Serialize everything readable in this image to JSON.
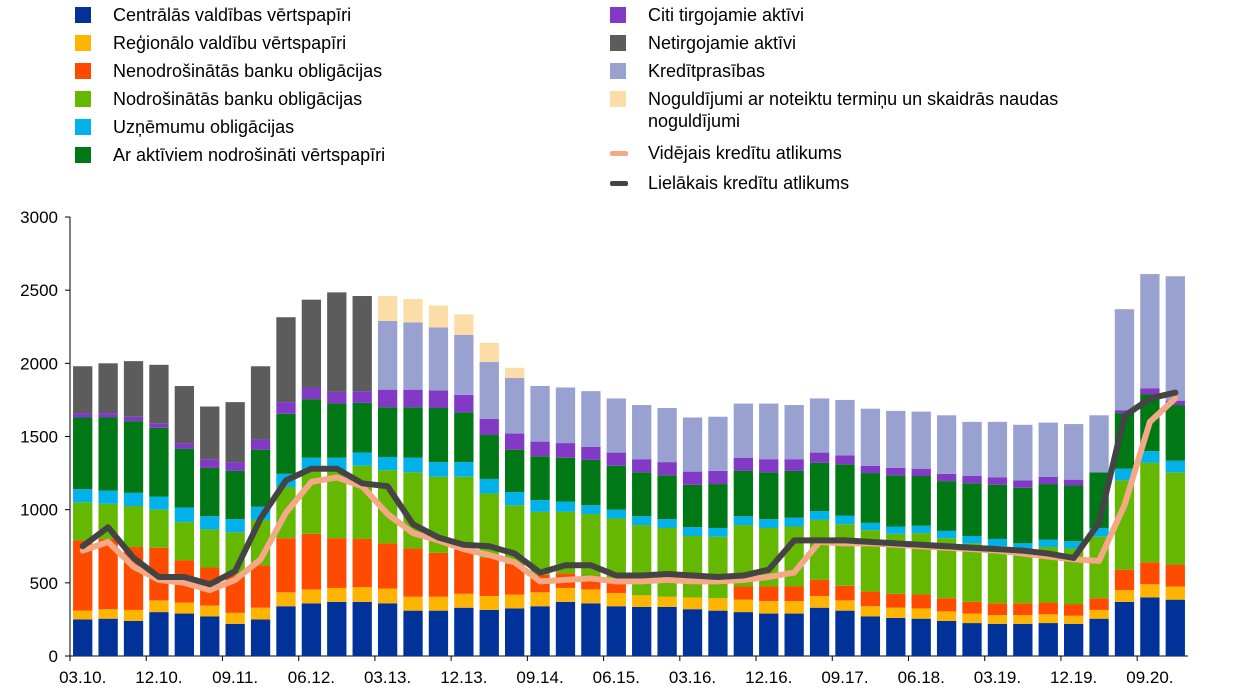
{
  "chart_data": {
    "type": "bar",
    "stacked": true,
    "categories": [
      "03.10.",
      "06.10.",
      "09.10.",
      "12.10.",
      "03.11.",
      "06.11.",
      "09.11.",
      "12.11.",
      "03.12.",
      "06.12.",
      "09.12.",
      "12.12.",
      "03.13.",
      "06.13.",
      "09.13.",
      "12.13.",
      "03.14.",
      "06.14.",
      "09.14.",
      "12.14.",
      "03.15.",
      "06.15.",
      "09.15.",
      "12.15.",
      "03.16.",
      "06.16.",
      "09.16.",
      "12.16.",
      "03.17.",
      "06.17.",
      "09.17.",
      "12.17.",
      "03.18.",
      "06.18.",
      "09.18.",
      "12.18.",
      "03.19.",
      "06.19.",
      "09.19.",
      "12.19.",
      "03.20.",
      "06.20.",
      "09.20.",
      "12.20."
    ],
    "x_tick_labels": [
      "03.10.",
      "12.10.",
      "09.11.",
      "06.12.",
      "03.13.",
      "12.13.",
      "09.14.",
      "06.15.",
      "03.16.",
      "12.16.",
      "09.17.",
      "06.18.",
      "03.19.",
      "12.19.",
      "09.20."
    ],
    "ylim": [
      0,
      3000
    ],
    "yticks": [
      0,
      500,
      1000,
      1500,
      2000,
      2500,
      3000
    ],
    "legend_position": "top",
    "grid": false,
    "series": [
      {
        "name": "Centrālās valdības vērtspapīri",
        "color": "#003299",
        "values": [
          250,
          255,
          240,
          300,
          290,
          270,
          220,
          250,
          340,
          360,
          370,
          370,
          360,
          310,
          310,
          330,
          315,
          325,
          340,
          370,
          360,
          340,
          335,
          335,
          320,
          310,
          300,
          290,
          290,
          330,
          310,
          270,
          260,
          255,
          240,
          225,
          220,
          220,
          225,
          220,
          255,
          370,
          400,
          385
        ]
      },
      {
        "name": "Reģionālo valdību vērtspapīri",
        "color": "#FFB400",
        "values": [
          60,
          65,
          75,
          80,
          75,
          75,
          75,
          80,
          95,
          95,
          95,
          100,
          100,
          95,
          95,
          95,
          95,
          95,
          95,
          95,
          95,
          90,
          80,
          70,
          80,
          85,
          85,
          85,
          85,
          80,
          70,
          70,
          70,
          70,
          65,
          65,
          60,
          60,
          60,
          55,
          60,
          80,
          90,
          90
        ]
      },
      {
        "name": "Nenodrošinātās banku obligācijas",
        "color": "#FF4B00",
        "values": [
          480,
          480,
          430,
          360,
          290,
          260,
          260,
          290,
          370,
          380,
          340,
          330,
          310,
          330,
          300,
          300,
          260,
          210,
          120,
          100,
          95,
          90,
          0,
          0,
          0,
          0,
          90,
          100,
          100,
          110,
          100,
          100,
          95,
          95,
          90,
          80,
          80,
          80,
          80,
          80,
          80,
          140,
          150,
          150
        ]
      },
      {
        "name": "Nodrošinātās banku obligācijas",
        "color": "#65B800",
        "values": [
          260,
          240,
          280,
          260,
          260,
          260,
          290,
          310,
          350,
          430,
          460,
          500,
          500,
          520,
          520,
          500,
          440,
          400,
          430,
          420,
          420,
          420,
          480,
          470,
          420,
          420,
          420,
          400,
          410,
          410,
          420,
          420,
          410,
          420,
          410,
          400,
          390,
          360,
          380,
          380,
          420,
          610,
          680,
          630
        ]
      },
      {
        "name": "Uzņēmumu obligācijas",
        "color": "#00B1EA",
        "values": [
          90,
          90,
          90,
          90,
          100,
          90,
          90,
          90,
          90,
          90,
          90,
          90,
          90,
          100,
          100,
          100,
          100,
          90,
          80,
          70,
          60,
          60,
          60,
          60,
          60,
          60,
          60,
          60,
          60,
          60,
          60,
          50,
          50,
          50,
          50,
          50,
          50,
          50,
          50,
          50,
          60,
          80,
          80,
          80
        ]
      },
      {
        "name": "Ar aktīviem nodrošināti vērtspapīri",
        "color": "#007816",
        "values": [
          490,
          500,
          490,
          470,
          400,
          330,
          330,
          390,
          410,
          400,
          370,
          340,
          340,
          345,
          370,
          340,
          300,
          290,
          300,
          300,
          310,
          300,
          300,
          300,
          290,
          300,
          310,
          320,
          320,
          330,
          350,
          340,
          350,
          340,
          340,
          360,
          370,
          380,
          380,
          380,
          380,
          380,
          390,
          380
        ]
      },
      {
        "name": "Citi tirgojamie aktīvi",
        "color": "#8139C6",
        "values": [
          30,
          30,
          30,
          30,
          40,
          60,
          60,
          70,
          80,
          80,
          80,
          80,
          120,
          120,
          120,
          120,
          110,
          110,
          100,
          100,
          90,
          90,
          90,
          90,
          90,
          90,
          90,
          90,
          80,
          70,
          60,
          50,
          50,
          50,
          50,
          50,
          50,
          50,
          50,
          40,
          0,
          20,
          40,
          30
        ]
      },
      {
        "name": "Netirgojamie aktīvi",
        "color": "#5C5C5C",
        "values": [
          320,
          340,
          380,
          400,
          390,
          360,
          410,
          500,
          580,
          600,
          680,
          650,
          0,
          0,
          0,
          0,
          0,
          0,
          0,
          0,
          0,
          0,
          0,
          0,
          0,
          0,
          0,
          0,
          0,
          0,
          0,
          0,
          0,
          0,
          0,
          0,
          0,
          0,
          0,
          0,
          0,
          0,
          0,
          0
        ]
      },
      {
        "name": "Kredītprasības",
        "color": "#98A1D0",
        "values": [
          0,
          0,
          0,
          0,
          0,
          0,
          0,
          0,
          0,
          0,
          0,
          0,
          470,
          460,
          430,
          410,
          390,
          380,
          380,
          380,
          380,
          370,
          370,
          370,
          370,
          370,
          370,
          380,
          370,
          370,
          380,
          390,
          390,
          390,
          400,
          370,
          380,
          380,
          370,
          380,
          390,
          690,
          780,
          850
        ]
      },
      {
        "name": "Noguldījumi ar noteiktu termiņu un skaidrās naudas noguldījumi",
        "color": "#FDDDA7",
        "values": [
          0,
          0,
          0,
          0,
          0,
          0,
          0,
          0,
          0,
          0,
          0,
          0,
          170,
          160,
          150,
          140,
          130,
          70,
          0,
          0,
          0,
          0,
          0,
          0,
          0,
          0,
          0,
          0,
          0,
          0,
          0,
          0,
          0,
          0,
          0,
          0,
          0,
          0,
          0,
          0,
          0,
          0,
          0,
          0
        ]
      }
    ],
    "lines": [
      {
        "name": "Vidējais kredītu atlikums",
        "color": "#F4A886",
        "values": [
          720,
          780,
          610,
          520,
          500,
          450,
          520,
          660,
          980,
          1190,
          1220,
          1160,
          970,
          840,
          790,
          730,
          690,
          640,
          510,
          520,
          530,
          510,
          510,
          520,
          510,
          510,
          520,
          540,
          570,
          780,
          770,
          770,
          760,
          750,
          740,
          730,
          720,
          700,
          680,
          660,
          650,
          1030,
          1600,
          1760
        ]
      },
      {
        "name": "Lielākais kredītu atlikums",
        "color": "#444444",
        "values": [
          750,
          880,
          670,
          540,
          540,
          490,
          580,
          940,
          1200,
          1280,
          1280,
          1180,
          1160,
          900,
          810,
          760,
          750,
          700,
          570,
          620,
          620,
          550,
          550,
          560,
          550,
          540,
          550,
          590,
          790,
          790,
          790,
          780,
          770,
          760,
          750,
          740,
          730,
          720,
          700,
          670,
          910,
          1640,
          1760,
          1800
        ]
      }
    ]
  }
}
